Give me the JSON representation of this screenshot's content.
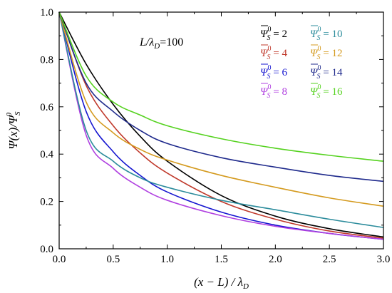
{
  "chart_data": {
    "type": "line",
    "xlim": [
      0,
      3.0
    ],
    "ylim": [
      0,
      1.0
    ],
    "x_ticks": [
      "0.0",
      "0.5",
      "1.0",
      "1.5",
      "2.0",
      "2.5",
      "3.0"
    ],
    "y_ticks": [
      "0.0",
      "0.2",
      "0.4",
      "0.6",
      "0.8",
      "1.0"
    ],
    "xlabel": "(x − L) / λD",
    "ylabel": "Ψ(x)/Ψ⁰S",
    "annotation": "L/λD=100",
    "grid": false,
    "legend_position": "top-right",
    "series": [
      {
        "name": "Ψ̄⁰S = 2",
        "color": "#000000",
        "x": [
          0,
          0.25,
          0.5,
          0.75,
          1.0,
          1.5,
          2.0,
          2.5,
          3.0
        ],
        "y": [
          1.0,
          0.78,
          0.61,
          0.475,
          0.37,
          0.225,
          0.138,
          0.085,
          0.05
        ]
      },
      {
        "name": "Ψ̄⁰S = 4",
        "color": "#c0392b",
        "x": [
          0,
          0.25,
          0.5,
          0.75,
          1.0,
          1.5,
          2.0,
          2.5,
          3.0
        ],
        "y": [
          1.0,
          0.69,
          0.52,
          0.405,
          0.32,
          0.2,
          0.125,
          0.075,
          0.045
        ]
      },
      {
        "name": "Ψ̄⁰S = 6",
        "color": "#1515d0",
        "x": [
          0,
          0.25,
          0.5,
          0.75,
          1.0,
          1.5,
          2.0,
          2.5,
          3.0
        ],
        "y": [
          1.0,
          0.58,
          0.41,
          0.31,
          0.24,
          0.155,
          0.1,
          0.065,
          0.04
        ]
      },
      {
        "name": "Ψ̄⁰S = 8",
        "color": "#b040e0",
        "x": [
          0,
          0.25,
          0.5,
          0.75,
          1.0,
          1.5,
          2.0,
          2.5,
          3.0
        ],
        "y": [
          1.0,
          0.48,
          0.34,
          0.26,
          0.205,
          0.14,
          0.095,
          0.065,
          0.04
        ]
      },
      {
        "name": "Ψ̄⁰S = 10",
        "color": "#2c8c9c",
        "x": [
          0,
          0.25,
          0.5,
          0.75,
          1.0,
          1.5,
          2.0,
          2.5,
          3.0
        ],
        "y": [
          1.0,
          0.5,
          0.37,
          0.3,
          0.26,
          0.205,
          0.165,
          0.125,
          0.09
        ]
      },
      {
        "name": "Ψ̄⁰S = 12",
        "color": "#d49a1e",
        "x": [
          0,
          0.25,
          0.5,
          0.75,
          1.0,
          1.5,
          2.0,
          2.5,
          3.0
        ],
        "y": [
          1.0,
          0.62,
          0.49,
          0.42,
          0.375,
          0.31,
          0.26,
          0.215,
          0.18
        ]
      },
      {
        "name": "Ψ̄⁰S = 14",
        "color": "#1f2a8c",
        "x": [
          0,
          0.25,
          0.5,
          0.75,
          1.0,
          1.5,
          2.0,
          2.5,
          3.0
        ],
        "y": [
          1.0,
          0.7,
          0.58,
          0.5,
          0.445,
          0.385,
          0.345,
          0.31,
          0.285
        ]
      },
      {
        "name": "Ψ̄⁰S = 16",
        "color": "#55d21f",
        "x": [
          0,
          0.25,
          0.5,
          0.75,
          1.0,
          1.5,
          2.0,
          2.5,
          3.0
        ],
        "y": [
          1.0,
          0.73,
          0.62,
          0.565,
          0.52,
          0.465,
          0.425,
          0.395,
          0.37
        ]
      }
    ],
    "legend": [
      {
        "value": "2",
        "color": "#000000"
      },
      {
        "value": "4",
        "color": "#c0392b"
      },
      {
        "value": "6",
        "color": "#1515d0"
      },
      {
        "value": "8",
        "color": "#b040e0"
      },
      {
        "value": "10",
        "color": "#2c8c9c"
      },
      {
        "value": "12",
        "color": "#d49a1e"
      },
      {
        "value": "14",
        "color": "#1f2a8c"
      },
      {
        "value": "16",
        "color": "#55d21f"
      }
    ]
  }
}
